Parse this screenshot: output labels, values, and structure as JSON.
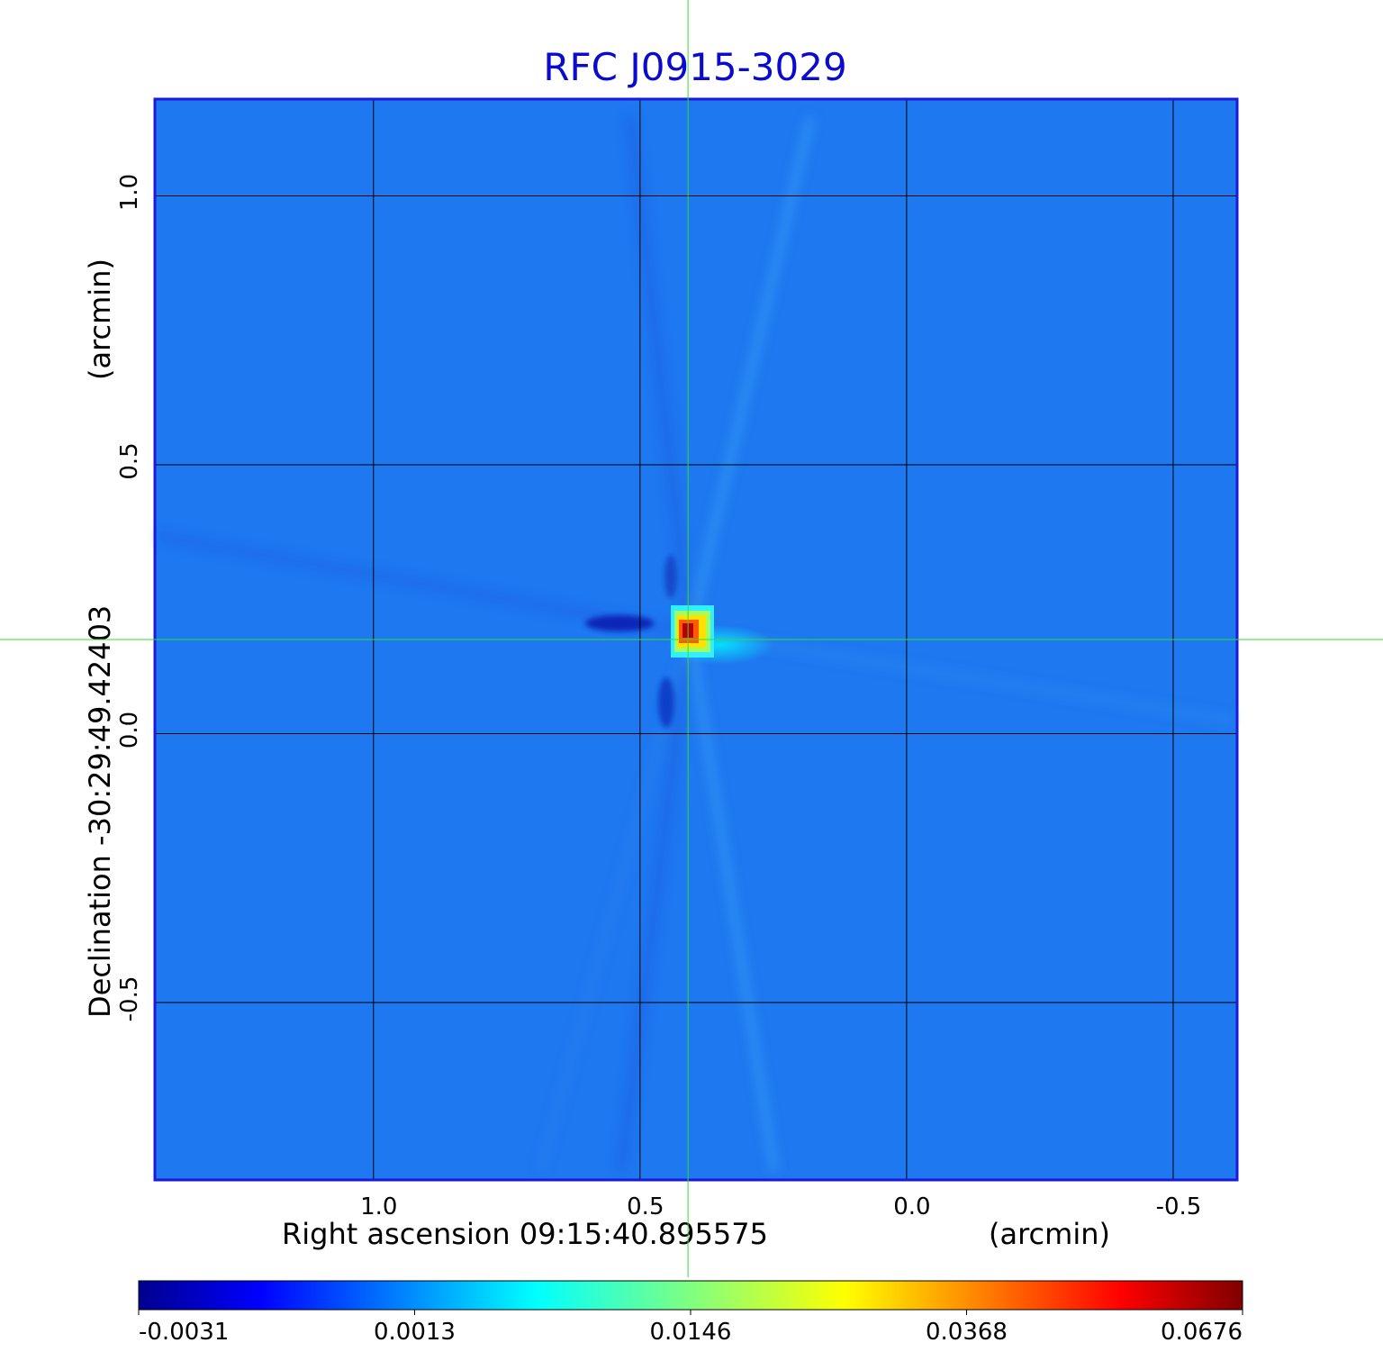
{
  "chart_data": {
    "type": "heatmap",
    "title": "RFC J0915-3029",
    "xlabel": "Right ascension  09:15:40.895575",
    "xunit": "(arcmin)",
    "ylabel": "Declination  -30:29:49.42403",
    "yunit": "(arcmin)",
    "xlim": [
      1.41,
      -0.62
    ],
    "ylim": [
      -0.83,
      1.18
    ],
    "x_ticks": [
      {
        "value": 1.0,
        "label": "1.0"
      },
      {
        "value": 0.5,
        "label": "0.5"
      },
      {
        "value": 0.0,
        "label": "0.0"
      },
      {
        "value": -0.5,
        "label": "-0.5"
      }
    ],
    "y_ticks": [
      {
        "value": 1.0,
        "label": "1.0"
      },
      {
        "value": 0.5,
        "label": "0.5"
      },
      {
        "value": 0.0,
        "label": "0.0"
      },
      {
        "value": -0.5,
        "label": "-0.5"
      }
    ],
    "grid": true,
    "crosshair": {
      "x": 0.41,
      "y": 0.175
    },
    "peak": {
      "x": 0.41,
      "y": 0.175,
      "value": 0.0676
    },
    "colorbar": {
      "colormap": "jet",
      "ticks": [
        {
          "value": -0.0031,
          "label": "-0.0031"
        },
        {
          "value": 0.0013,
          "label": "0.0013"
        },
        {
          "value": 0.0146,
          "label": "0.0146"
        },
        {
          "value": 0.0368,
          "label": "0.0368"
        },
        {
          "value": 0.0676,
          "label": "0.0676"
        }
      ]
    }
  },
  "colors": {
    "title": "#0b0bd0",
    "frame": "#1a1ad8",
    "grid": "#000000",
    "crosshair": "#33dd33",
    "background_map": "#1e78f0"
  }
}
